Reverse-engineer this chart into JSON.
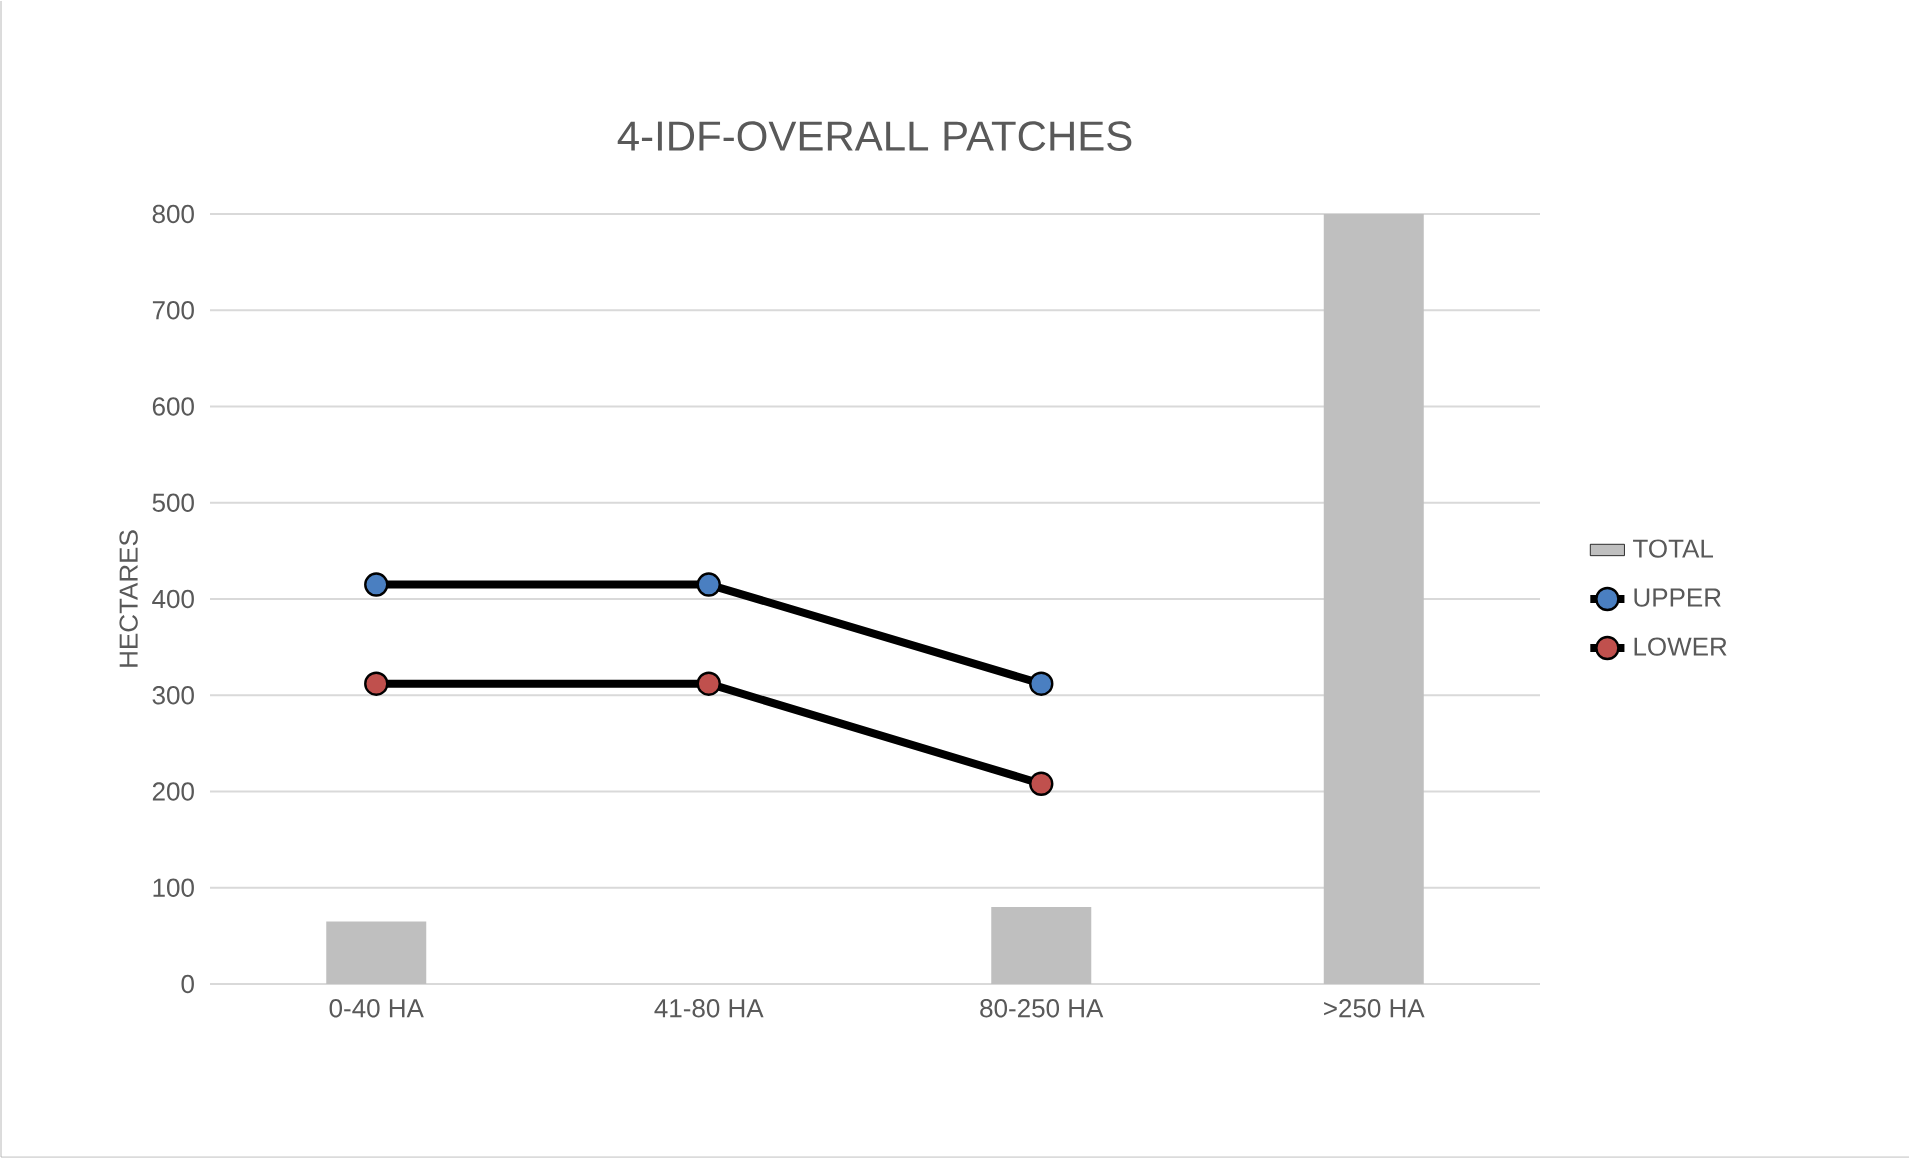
{
  "chart_data": {
    "type": "bar",
    "title": "4-IDF-OVERALL PATCHES",
    "ylabel": "HECTARES",
    "categories": [
      "0-40 HA",
      "41-80 HA",
      "80-250 HA",
      ">250 HA"
    ],
    "series": [
      {
        "name": "TOTAL",
        "color": "#bfbfbf",
        "values": [
          65,
          null,
          80,
          800
        ]
      },
      {
        "name": "UPPER",
        "type": "line",
        "color": "#4a7fc1",
        "values": [
          415,
          415,
          312,
          null
        ]
      },
      {
        "name": "LOWER",
        "type": "line",
        "color": "#c0504d",
        "values": [
          312,
          312,
          208,
          null
        ]
      }
    ],
    "ylim": [
      0,
      800
    ],
    "yticks": [
      0,
      100,
      200,
      300,
      400,
      500,
      600,
      700,
      800
    ],
    "grid": "y",
    "legend": "right",
    "marker": "circle"
  }
}
